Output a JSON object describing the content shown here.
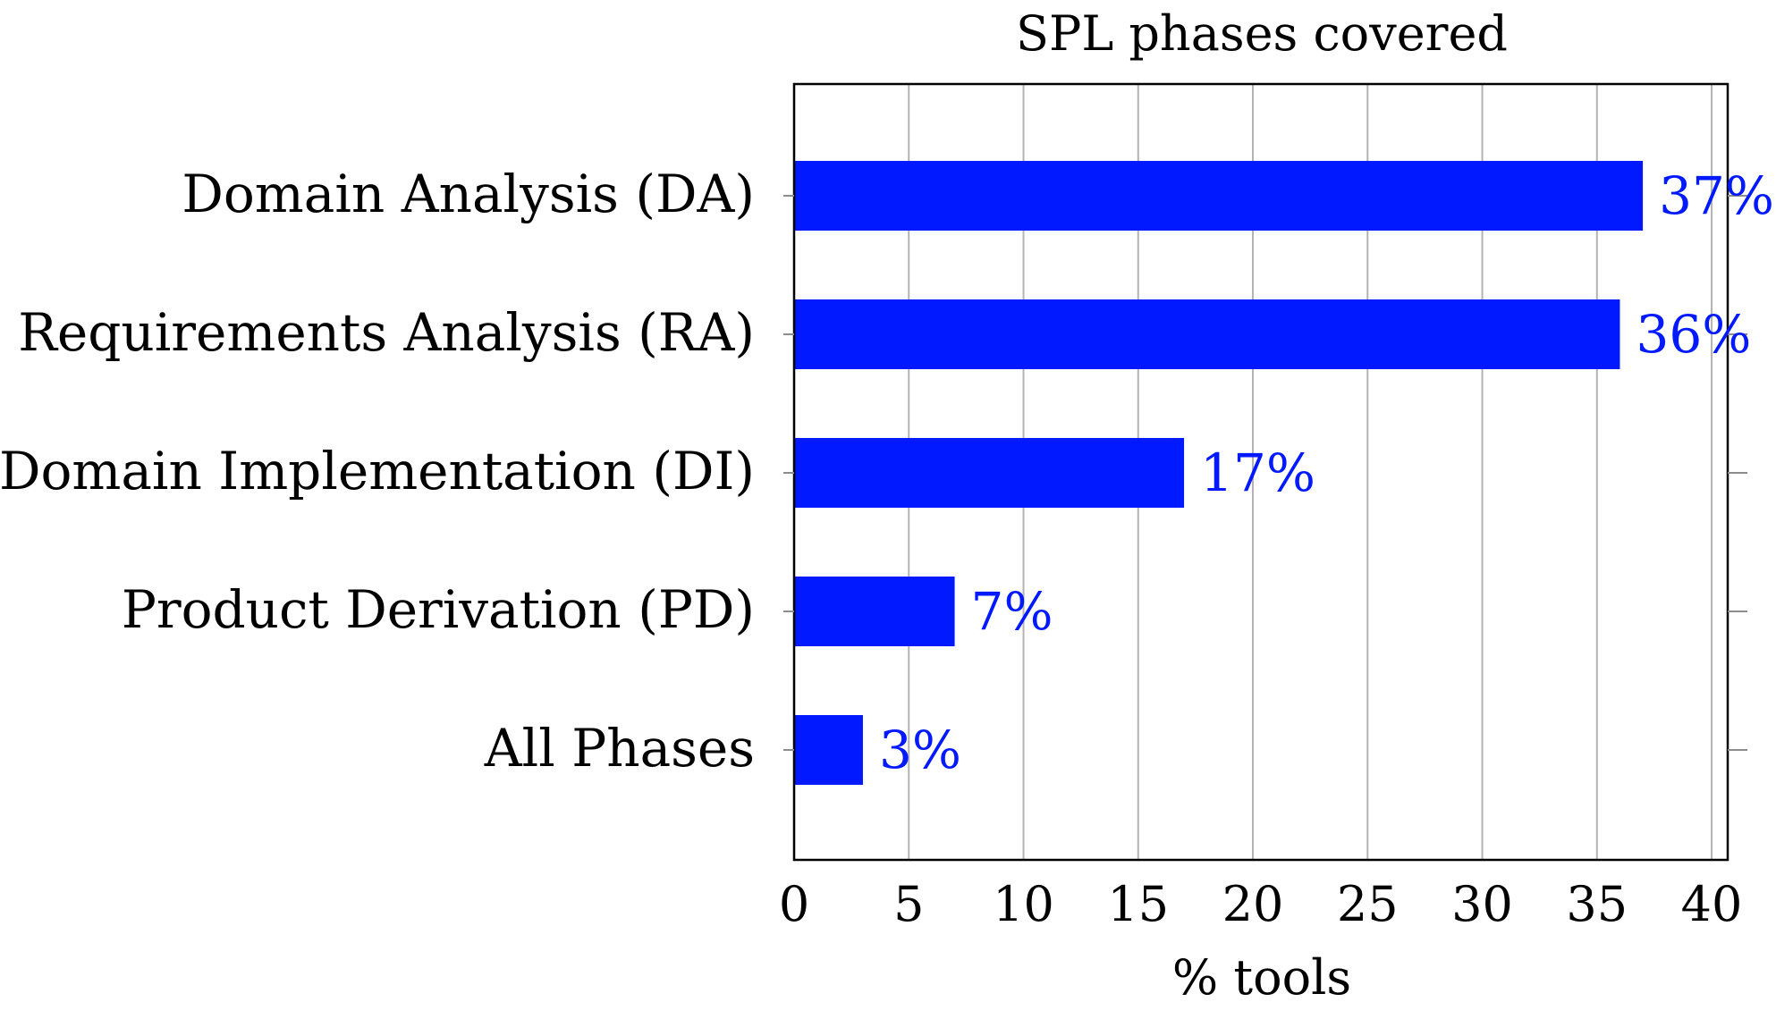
{
  "chart_data": {
    "type": "bar",
    "orientation": "horizontal",
    "title": "SPL phases covered",
    "xlabel": "% tools",
    "ylabel": "",
    "categories": [
      "Domain Analysis (DA)",
      "Requirements Analysis (RA)",
      "Domain Implementation (DI)",
      "Product Derivation (PD)",
      "All Phases"
    ],
    "values": [
      37,
      36,
      17,
      7,
      3
    ],
    "data_labels": [
      "37%",
      "36%",
      "17%",
      "7%",
      "3%"
    ],
    "xlim": [
      0,
      40.7
    ],
    "xticks": [
      0,
      5,
      10,
      15,
      20,
      25,
      30,
      35,
      40
    ],
    "grid": "vertical",
    "legend": "none",
    "colors": {
      "bar": "#0019ff",
      "label": "#0019ff"
    }
  }
}
